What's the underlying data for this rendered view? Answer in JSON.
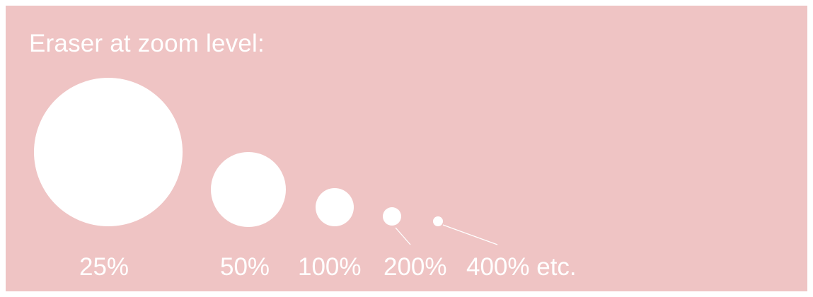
{
  "title": "Eraser at zoom level:",
  "colors": {
    "background": "#efc4c4",
    "eraser": "#ffffff",
    "text": "#ffffff"
  },
  "zoom_levels": [
    {
      "label": "25%"
    },
    {
      "label": "50%"
    },
    {
      "label": "100%"
    },
    {
      "label": "200%"
    },
    {
      "label": "400% etc."
    }
  ]
}
